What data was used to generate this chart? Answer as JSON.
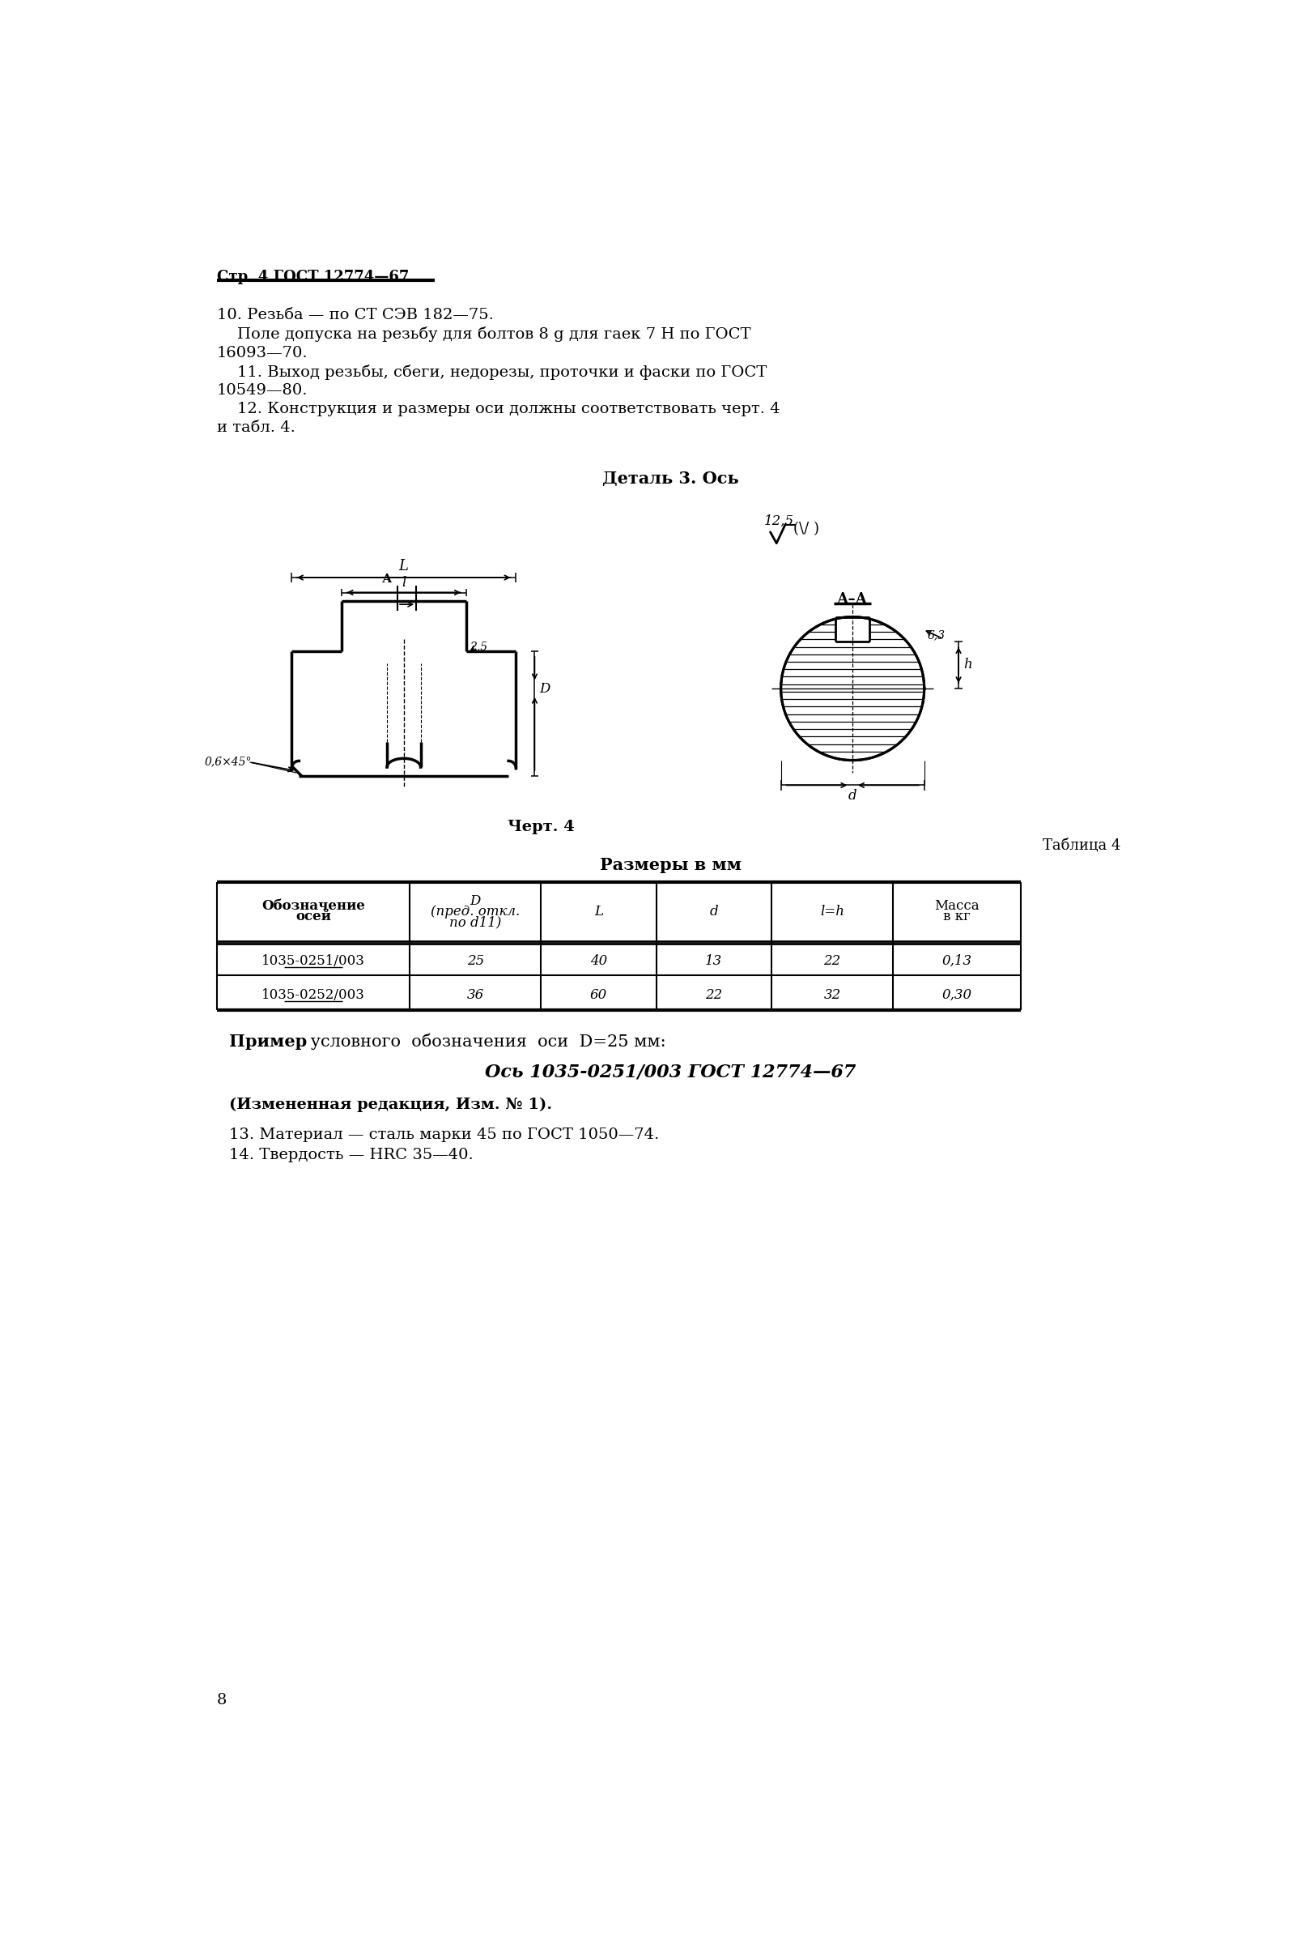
{
  "page_header": "Стр. 4 ГОСТ 12774—67",
  "bg_color": "#ffffff",
  "paragraph10_line1": "10. Резьба — по СТ СЭВ 182—75.",
  "paragraph10_line2": "    Поле допуска на резьбу для болтов 8 g для гаек 7 H по ГОСТ",
  "paragraph10_line3": "16093—70.",
  "paragraph11_line1": "    11. Выход резьбы, сбеги, недорезы, проточки и фаски по ГОСТ",
  "paragraph11_line2": "10549—80.",
  "paragraph12_line1": "    12. Конструкция и размеры оси должны соответствовать черт. 4",
  "paragraph12_line2": "и табл. 4.",
  "detail_title": "Деталь 3. Ось",
  "chert_label": "Черт. 4",
  "table_title_right": "Таблица 4",
  "table_title_center": "Размеры в мм",
  "table_data": [
    [
      "1035-0251/003",
      "25",
      "40",
      "13",
      "22",
      "0,13"
    ],
    [
      "1035-0252/003",
      "36",
      "60",
      "22",
      "32",
      "0,30"
    ]
  ],
  "example_line1_prefix": "Пример",
  "example_line1_rest": " условного  обозначения  оси  D=25 мм:",
  "example_line2": "Ось 1035-0251/003 ГОСТ 12774—67",
  "changed_text": "(Измененная редакция, Изм. № 1).",
  "paragraph13": "13. Материал — сталь марки 45 по ГОСТ 1050—74.",
  "paragraph14": "14. Твердость — HRC 35—40.",
  "page_number": "8"
}
